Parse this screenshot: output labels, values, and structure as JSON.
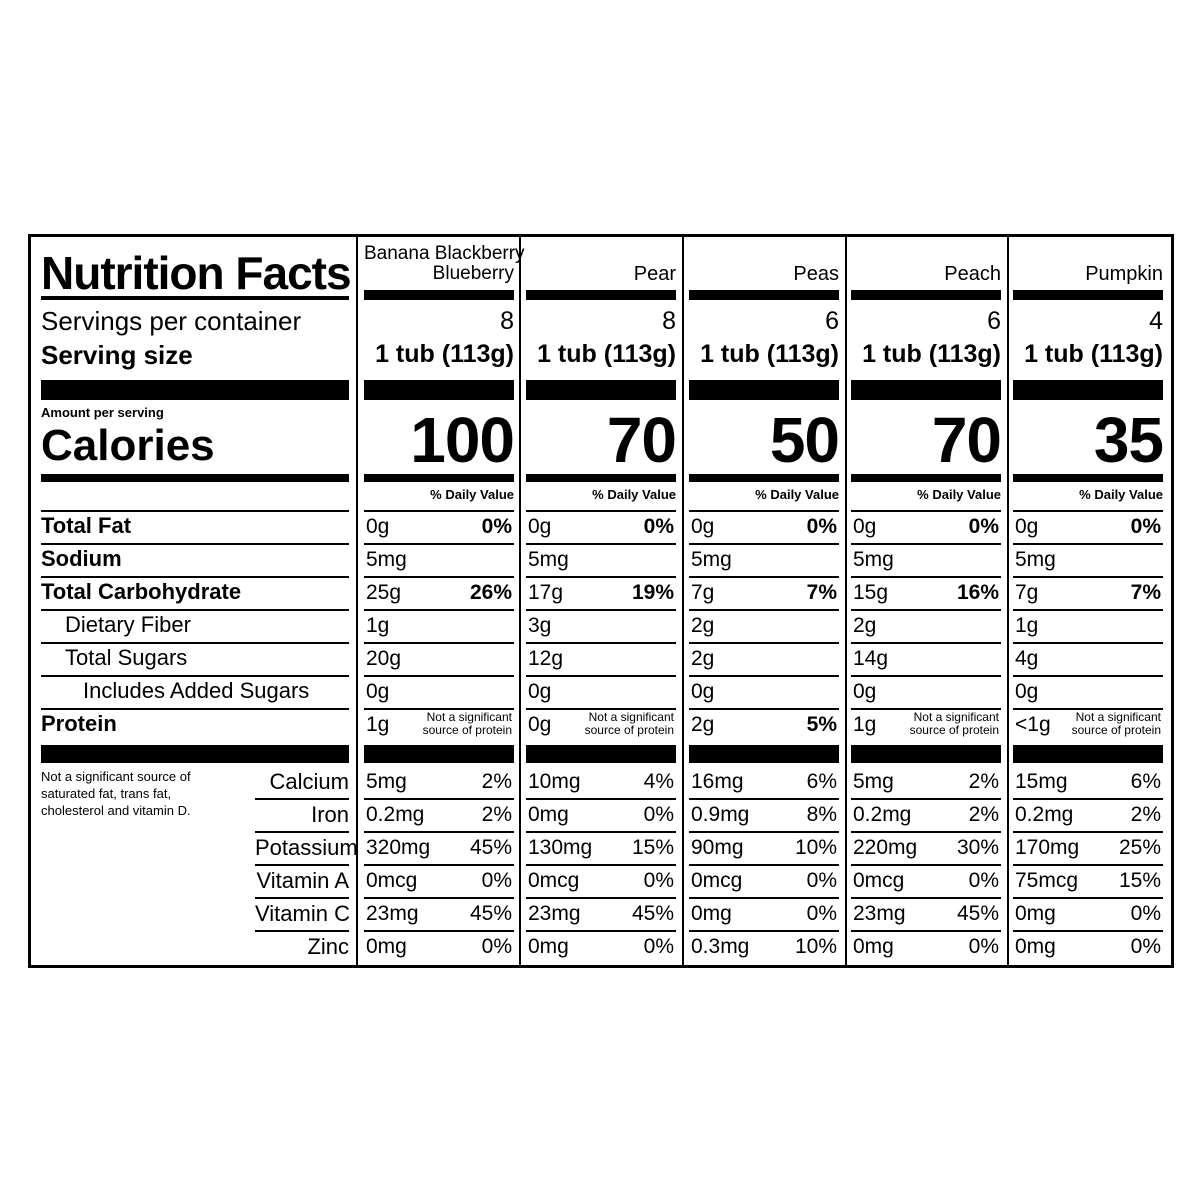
{
  "title": "Nutrition Facts",
  "servings_label": "Servings per container",
  "serving_size_label": "Serving size",
  "amount_per_serving": "Amount per serving",
  "calories_label": "Calories",
  "dv_header": "% Daily Value",
  "not_significant_protein": [
    "Not a significant",
    "source of protein"
  ],
  "footnote": [
    "Not a significant source of",
    "saturated fat, trans fat,",
    "cholesterol and vitamin D."
  ],
  "nutrients": [
    {
      "label": "Total Fat",
      "bold": true,
      "indent": 0
    },
    {
      "label": "Sodium",
      "bold": true,
      "indent": 0
    },
    {
      "label": "Total Carbohydrate",
      "bold": true,
      "indent": 0
    },
    {
      "label": "Dietary Fiber",
      "bold": false,
      "indent": 1
    },
    {
      "label": "Total Sugars",
      "bold": false,
      "indent": 1
    },
    {
      "label": "Includes Added Sugars",
      "bold": false,
      "indent": 2
    },
    {
      "label": "Protein",
      "bold": true,
      "indent": 0
    }
  ],
  "micro_labels": [
    "Calcium",
    "Iron",
    "Potassium",
    "Vitamin A",
    "Vitamin C",
    "Zinc"
  ],
  "products": [
    {
      "name": [
        "Banana Blackberry",
        "Blueberry"
      ],
      "servings": "8",
      "serving_size": "1 tub (113g)",
      "calories": "100",
      "nutrients": [
        [
          "0g",
          "0%"
        ],
        [
          "5mg",
          ""
        ],
        [
          "25g",
          "26%"
        ],
        [
          "1g",
          ""
        ],
        [
          "20g",
          ""
        ],
        [
          "0g",
          ""
        ],
        [
          "1g",
          "NS"
        ]
      ],
      "micro": [
        [
          "5mg",
          "2%"
        ],
        [
          "0.2mg",
          "2%"
        ],
        [
          "320mg",
          "45%"
        ],
        [
          "0mcg",
          "0%"
        ],
        [
          "23mg",
          "45%"
        ],
        [
          "0mg",
          "0%"
        ]
      ]
    },
    {
      "name": [
        "Pear"
      ],
      "servings": "8",
      "serving_size": "1 tub (113g)",
      "calories": "70",
      "nutrients": [
        [
          "0g",
          "0%"
        ],
        [
          "5mg",
          ""
        ],
        [
          "17g",
          "19%"
        ],
        [
          "3g",
          ""
        ],
        [
          "12g",
          ""
        ],
        [
          "0g",
          ""
        ],
        [
          "0g",
          "NS"
        ]
      ],
      "micro": [
        [
          "10mg",
          "4%"
        ],
        [
          "0mg",
          "0%"
        ],
        [
          "130mg",
          "15%"
        ],
        [
          "0mcg",
          "0%"
        ],
        [
          "23mg",
          "45%"
        ],
        [
          "0mg",
          "0%"
        ]
      ]
    },
    {
      "name": [
        "Peas"
      ],
      "servings": "6",
      "serving_size": "1 tub (113g)",
      "calories": "50",
      "nutrients": [
        [
          "0g",
          "0%"
        ],
        [
          "5mg",
          ""
        ],
        [
          "7g",
          "7%"
        ],
        [
          "2g",
          ""
        ],
        [
          "2g",
          ""
        ],
        [
          "0g",
          ""
        ],
        [
          "2g",
          "5%"
        ]
      ],
      "micro": [
        [
          "16mg",
          "6%"
        ],
        [
          "0.9mg",
          "8%"
        ],
        [
          "90mg",
          "10%"
        ],
        [
          "0mcg",
          "0%"
        ],
        [
          "0mg",
          "0%"
        ],
        [
          "0.3mg",
          "10%"
        ]
      ]
    },
    {
      "name": [
        "Peach"
      ],
      "servings": "6",
      "serving_size": "1 tub (113g)",
      "calories": "70",
      "nutrients": [
        [
          "0g",
          "0%"
        ],
        [
          "5mg",
          ""
        ],
        [
          "15g",
          "16%"
        ],
        [
          "2g",
          ""
        ],
        [
          "14g",
          ""
        ],
        [
          "0g",
          ""
        ],
        [
          "1g",
          "NS"
        ]
      ],
      "micro": [
        [
          "5mg",
          "2%"
        ],
        [
          "0.2mg",
          "2%"
        ],
        [
          "220mg",
          "30%"
        ],
        [
          "0mcg",
          "0%"
        ],
        [
          "23mg",
          "45%"
        ],
        [
          "0mg",
          "0%"
        ]
      ]
    },
    {
      "name": [
        "Pumpkin"
      ],
      "servings": "4",
      "serving_size": "1 tub (113g)",
      "calories": "35",
      "nutrients": [
        [
          "0g",
          "0%"
        ],
        [
          "5mg",
          ""
        ],
        [
          "7g",
          "7%"
        ],
        [
          "1g",
          ""
        ],
        [
          "4g",
          ""
        ],
        [
          "0g",
          ""
        ],
        [
          "<1g",
          "NS"
        ]
      ],
      "micro": [
        [
          "15mg",
          "6%"
        ],
        [
          "0.2mg",
          "2%"
        ],
        [
          "170mg",
          "25%"
        ],
        [
          "75mcg",
          "15%"
        ],
        [
          "0mg",
          "0%"
        ],
        [
          "0mg",
          "0%"
        ]
      ]
    }
  ]
}
